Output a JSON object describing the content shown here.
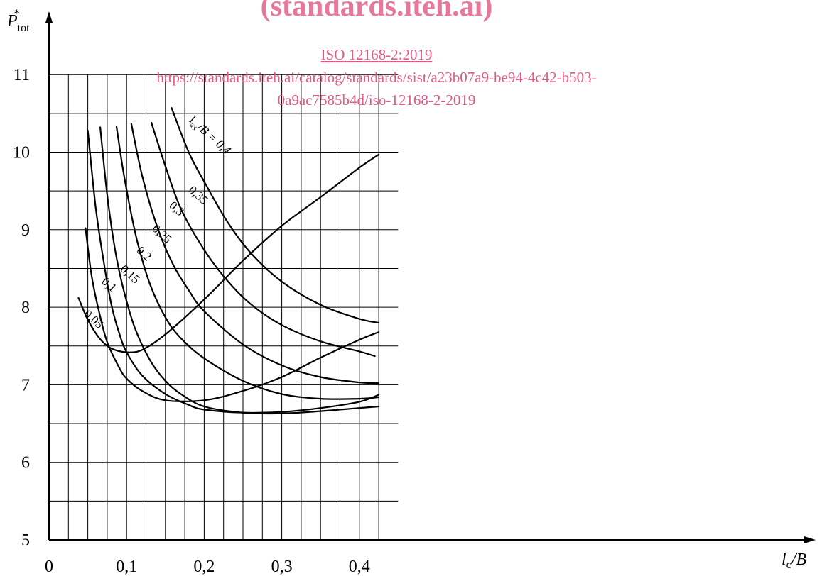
{
  "colors": {
    "line": "#000000",
    "grid": "#000000",
    "watermark": "#e05a84"
  },
  "watermark": {
    "title": "(standards.iteh.ai)",
    "link": "ISO 12168-2:2019",
    "url_line1": "https://standards.iteh.ai/catalog/standards/sist/a23b07a9-be94-4c42-b503-",
    "url_line2": "0a9ac7585b4d/iso-12168-2-2019"
  },
  "chart_data": {
    "type": "line",
    "title": "",
    "xlabel": "l",
    "xlabel_sub": "c",
    "xlabel_suffix": "/B",
    "ylabel": "P",
    "ylabel_sub": "tot",
    "ylabel_sup": "*",
    "xlim": [
      0,
      0.45
    ],
    "ylim": [
      5,
      11.5
    ],
    "x_ticks": [
      0,
      0.1,
      0.2,
      0.3,
      0.4
    ],
    "x_tick_labels": [
      "0",
      "0,1",
      "0,2",
      "0,3",
      "0,4"
    ],
    "y_ticks": [
      5,
      6,
      7,
      8,
      9,
      10,
      11
    ],
    "y_tick_labels": [
      "5",
      "6",
      "7",
      "8",
      "9",
      "10",
      "11"
    ],
    "grid": true,
    "grid_x_step": 0.025,
    "grid_y_step": 0.5,
    "series": [
      {
        "name": "0,05",
        "x": [
          0.038,
          0.05,
          0.065,
          0.08,
          0.1,
          0.12,
          0.15,
          0.2,
          0.25,
          0.3,
          0.35,
          0.4,
          0.425
        ],
        "y": [
          8.12,
          7.84,
          7.6,
          7.47,
          7.42,
          7.45,
          7.65,
          8.1,
          8.6,
          9.05,
          9.42,
          9.8,
          9.97
        ]
      },
      {
        "name": "0,1",
        "x": [
          0.047,
          0.055,
          0.065,
          0.075,
          0.09,
          0.1,
          0.12,
          0.15,
          0.2,
          0.25,
          0.3,
          0.35,
          0.4,
          0.425
        ],
        "y": [
          9.02,
          8.4,
          7.92,
          7.55,
          7.23,
          7.08,
          6.92,
          6.8,
          6.8,
          6.92,
          7.1,
          7.35,
          7.58,
          7.68
        ]
      },
      {
        "name": "0,15",
        "x": [
          0.05,
          0.06,
          0.07,
          0.08,
          0.09,
          0.1,
          0.12,
          0.15,
          0.18,
          0.2,
          0.25,
          0.3,
          0.35,
          0.4,
          0.425
        ],
        "y": [
          10.28,
          9.3,
          8.62,
          8.05,
          7.68,
          7.42,
          7.12,
          6.88,
          6.74,
          6.68,
          6.64,
          6.65,
          6.7,
          6.78,
          6.87
        ]
      },
      {
        "name": "0,2",
        "x": [
          0.066,
          0.075,
          0.085,
          0.095,
          0.11,
          0.13,
          0.15,
          0.17,
          0.2,
          0.25,
          0.3,
          0.35,
          0.4,
          0.425
        ],
        "y": [
          10.32,
          9.45,
          8.75,
          8.27,
          7.75,
          7.32,
          7.05,
          6.88,
          6.72,
          6.64,
          6.63,
          6.66,
          6.7,
          6.72
        ]
      },
      {
        "name": "0,25",
        "x": [
          0.087,
          0.095,
          0.105,
          0.115,
          0.13,
          0.15,
          0.17,
          0.2,
          0.25,
          0.3,
          0.35,
          0.4,
          0.425
        ],
        "y": [
          10.33,
          9.8,
          9.25,
          8.8,
          8.3,
          7.87,
          7.6,
          7.34,
          7.05,
          6.88,
          6.82,
          6.82,
          6.84
        ]
      },
      {
        "name": "0,3",
        "x": [
          0.106,
          0.12,
          0.14,
          0.16,
          0.18,
          0.2,
          0.25,
          0.3,
          0.35,
          0.4,
          0.425
        ],
        "y": [
          10.37,
          9.7,
          9.02,
          8.55,
          8.22,
          7.95,
          7.52,
          7.25,
          7.1,
          7.03,
          7.02
        ]
      },
      {
        "name": "0,35",
        "x": [
          0.132,
          0.15,
          0.17,
          0.2,
          0.23,
          0.26,
          0.3,
          0.35,
          0.4,
          0.42
        ],
        "y": [
          10.38,
          9.82,
          9.27,
          8.74,
          8.34,
          8.04,
          7.77,
          7.56,
          7.43,
          7.37
        ]
      },
      {
        "name": "0,4",
        "x": [
          0.158,
          0.18,
          0.2,
          0.23,
          0.26,
          0.3,
          0.35,
          0.4,
          0.425
        ],
        "y": [
          10.57,
          10.0,
          9.62,
          9.1,
          8.7,
          8.33,
          8.03,
          7.85,
          7.8
        ]
      }
    ],
    "curve_labels": [
      {
        "text": "0,05",
        "series": "0,05",
        "at_x": 0.044,
        "at_y": 7.9
      },
      {
        "text": "0,1",
        "series": "0,1",
        "at_x": 0.067,
        "at_y": 8.32
      },
      {
        "text": "0,15",
        "series": "0,15",
        "at_x": 0.091,
        "at_y": 8.48
      },
      {
        "text": "0,2",
        "series": "0,2",
        "at_x": 0.112,
        "at_y": 8.72
      },
      {
        "text": "0,25",
        "series": "0,25",
        "at_x": 0.132,
        "at_y": 9.0
      },
      {
        "text": "0,3",
        "series": "0,3",
        "at_x": 0.154,
        "at_y": 9.3
      },
      {
        "text": "0,35",
        "series": "0,35",
        "at_x": 0.179,
        "at_y": 9.5
      },
      {
        "text": "/B = 0,4",
        "prefix": "l",
        "prefix_sub": "ax",
        "series": "0,4",
        "at_x": 0.18,
        "at_y": 10.4
      }
    ]
  }
}
